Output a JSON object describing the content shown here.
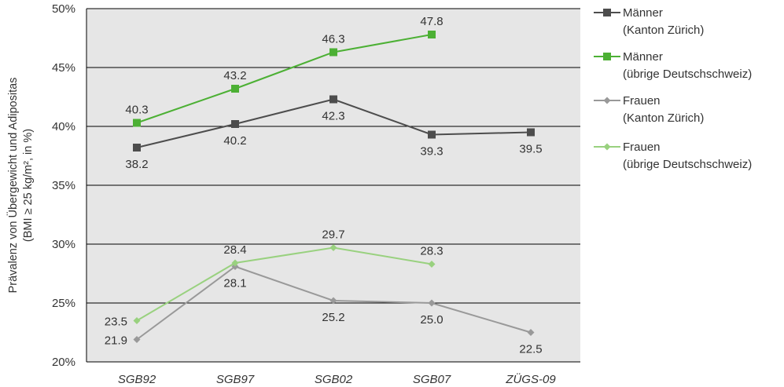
{
  "chart_data": {
    "type": "line",
    "categories": [
      "SGB92",
      "SGB97",
      "SGB02",
      "SGB07",
      "ZÜGS-09"
    ],
    "ylabel": "Prävalenz von Übergewicht und Adipositas",
    "ylabel2": "(BMI ≥ 25 kg/m², in %)",
    "ylim": [
      20,
      50
    ],
    "yticks": [
      {
        "value": 20,
        "label": "20%"
      },
      {
        "value": 25,
        "label": "25%"
      },
      {
        "value": 30,
        "label": "30%"
      },
      {
        "value": 35,
        "label": "35%"
      },
      {
        "value": 40,
        "label": "40%"
      },
      {
        "value": 45,
        "label": "45%"
      },
      {
        "value": 50,
        "label": "50%"
      }
    ],
    "grid": true,
    "legend_position": "right",
    "series": [
      {
        "name": "Männer (Kanton Zürich)",
        "legend_lines": [
          "Männer",
          "(Kanton Zürich)"
        ],
        "color": "#4d4d4d",
        "marker": "square",
        "values": [
          38.2,
          40.2,
          42.3,
          39.3,
          39.5
        ],
        "labels": [
          "38.2",
          "40.2",
          "42.3",
          "39.3",
          "39.5"
        ],
        "label_pos": [
          "below",
          "below",
          "below",
          "below",
          "below"
        ]
      },
      {
        "name": "Männer (übrige Deutschschweiz)",
        "legend_lines": [
          "Männer",
          "(übrige Deutschschweiz)"
        ],
        "color": "#4cb034",
        "marker": "square",
        "values": [
          40.3,
          43.2,
          46.3,
          47.8,
          null
        ],
        "labels": [
          "40.3",
          "43.2",
          "46.3",
          "47.8",
          null
        ],
        "label_pos": [
          "above",
          "above",
          "above",
          "above",
          null
        ]
      },
      {
        "name": "Frauen (Kanton Zürich)",
        "legend_lines": [
          "Frauen",
          "(Kanton Zürich)"
        ],
        "color": "#999999",
        "marker": "diamond",
        "values": [
          21.9,
          28.1,
          25.2,
          25.0,
          22.5
        ],
        "labels": [
          "21.9",
          "28.1",
          "25.2",
          "25.0",
          "22.5"
        ],
        "label_pos": [
          "left",
          "below",
          "below",
          "below",
          "below"
        ]
      },
      {
        "name": "Frauen (übrige Deutschschweiz)",
        "legend_lines": [
          "Frauen",
          "(übrige Deutschschweiz)"
        ],
        "color": "#99d17f",
        "marker": "diamond",
        "values": [
          23.5,
          28.4,
          29.7,
          28.3,
          null
        ],
        "labels": [
          "23.5",
          "28.4",
          "29.7",
          "28.3",
          null
        ],
        "label_pos": [
          "left",
          "above",
          "above",
          "above",
          null
        ]
      }
    ]
  }
}
